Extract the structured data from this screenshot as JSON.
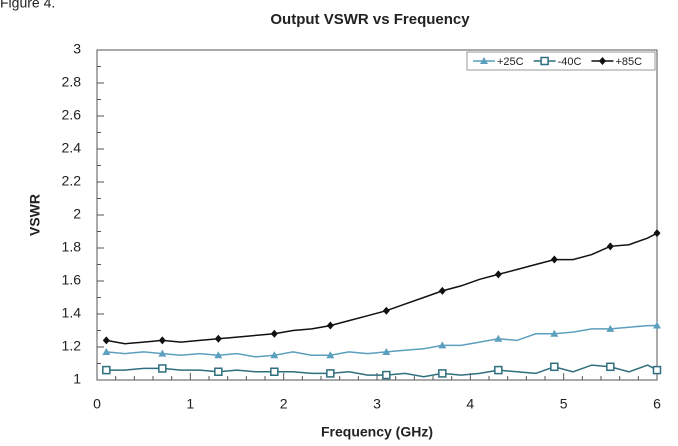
{
  "chart_data": {
    "type": "line",
    "caption": "Figure 4.",
    "title": "Output VSWR vs Frequency",
    "xlabel": "Frequency (GHz)",
    "ylabel": "VSWR",
    "x": [
      0.1,
      0.3,
      0.5,
      0.7,
      0.9,
      1.1,
      1.3,
      1.5,
      1.7,
      1.9,
      2.1,
      2.3,
      2.5,
      2.7,
      2.9,
      3.1,
      3.3,
      3.5,
      3.7,
      3.9,
      4.1,
      4.3,
      4.5,
      4.7,
      4.9,
      5.1,
      5.3,
      5.5,
      5.7,
      5.9,
      6.0
    ],
    "series": [
      {
        "name": "+25C",
        "color": "#5d9fbf",
        "marker": "triangle",
        "values": [
          1.17,
          1.16,
          1.17,
          1.16,
          1.15,
          1.16,
          1.15,
          1.16,
          1.14,
          1.15,
          1.17,
          1.15,
          1.15,
          1.17,
          1.16,
          1.17,
          1.18,
          1.19,
          1.21,
          1.21,
          1.23,
          1.25,
          1.24,
          1.28,
          1.28,
          1.29,
          1.31,
          1.31,
          1.32,
          1.33,
          1.33
        ]
      },
      {
        "name": "-40C",
        "color": "#2e6e7e",
        "marker": "square",
        "values": [
          1.06,
          1.06,
          1.07,
          1.07,
          1.06,
          1.06,
          1.05,
          1.06,
          1.05,
          1.05,
          1.05,
          1.04,
          1.04,
          1.05,
          1.03,
          1.03,
          1.04,
          1.02,
          1.04,
          1.03,
          1.04,
          1.06,
          1.05,
          1.04,
          1.08,
          1.05,
          1.09,
          1.08,
          1.05,
          1.09,
          1.06
        ]
      },
      {
        "name": "+85C",
        "color": "#111111",
        "marker": "diamond",
        "values": [
          1.24,
          1.22,
          1.23,
          1.24,
          1.23,
          1.24,
          1.25,
          1.26,
          1.27,
          1.28,
          1.3,
          1.31,
          1.33,
          1.36,
          1.39,
          1.42,
          1.46,
          1.5,
          1.54,
          1.57,
          1.61,
          1.64,
          1.67,
          1.7,
          1.73,
          1.73,
          1.76,
          1.81,
          1.82,
          1.86,
          1.89
        ]
      }
    ],
    "xlim": [
      0,
      6
    ],
    "xticks": [
      0,
      1,
      2,
      3,
      4,
      5,
      6
    ],
    "ylim": [
      1,
      3
    ],
    "yticks": [
      1,
      1.2,
      1.4,
      1.6,
      1.8,
      2,
      2.2,
      2.4,
      2.6,
      2.8,
      3
    ],
    "grid": false,
    "legend": "upper right"
  }
}
